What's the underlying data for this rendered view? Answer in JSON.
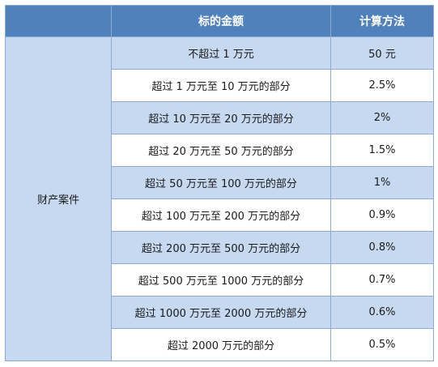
{
  "table": {
    "headers": {
      "category": "",
      "amount": "标的金额",
      "method": "计算方法"
    },
    "category_label": "财产案件",
    "rows": [
      {
        "amount": "不超过 1 万元",
        "method": "50 元"
      },
      {
        "amount": "超过 1 万元至 10 万元的部分",
        "method": "2.5%"
      },
      {
        "amount": "超过 10 万元至 20 万元的部分",
        "method": "2%"
      },
      {
        "amount": "超过 20 万元至 50 万元的部分",
        "method": "1.5%"
      },
      {
        "amount": "超过 50 万元至 100 万元的部分",
        "method": "1%"
      },
      {
        "amount": "超过 100 万元至 200 万元的部分",
        "method": "0.9%"
      },
      {
        "amount": "超过 200 万元至 500 万元的部分",
        "method": "0.8%"
      },
      {
        "amount": "超过 500 万元至 1000 万元的部分",
        "method": "0.7%"
      },
      {
        "amount": "超过 1000 万元至 2000 万元的部分",
        "method": "0.6%"
      },
      {
        "amount": "超过 2000 万元的部分",
        "method": "0.5%"
      }
    ]
  },
  "colors": {
    "header_bg": "#4f81bd",
    "header_text": "#ffffff",
    "shade_bg": "#c6d9f0",
    "border": "#8eaad0"
  }
}
